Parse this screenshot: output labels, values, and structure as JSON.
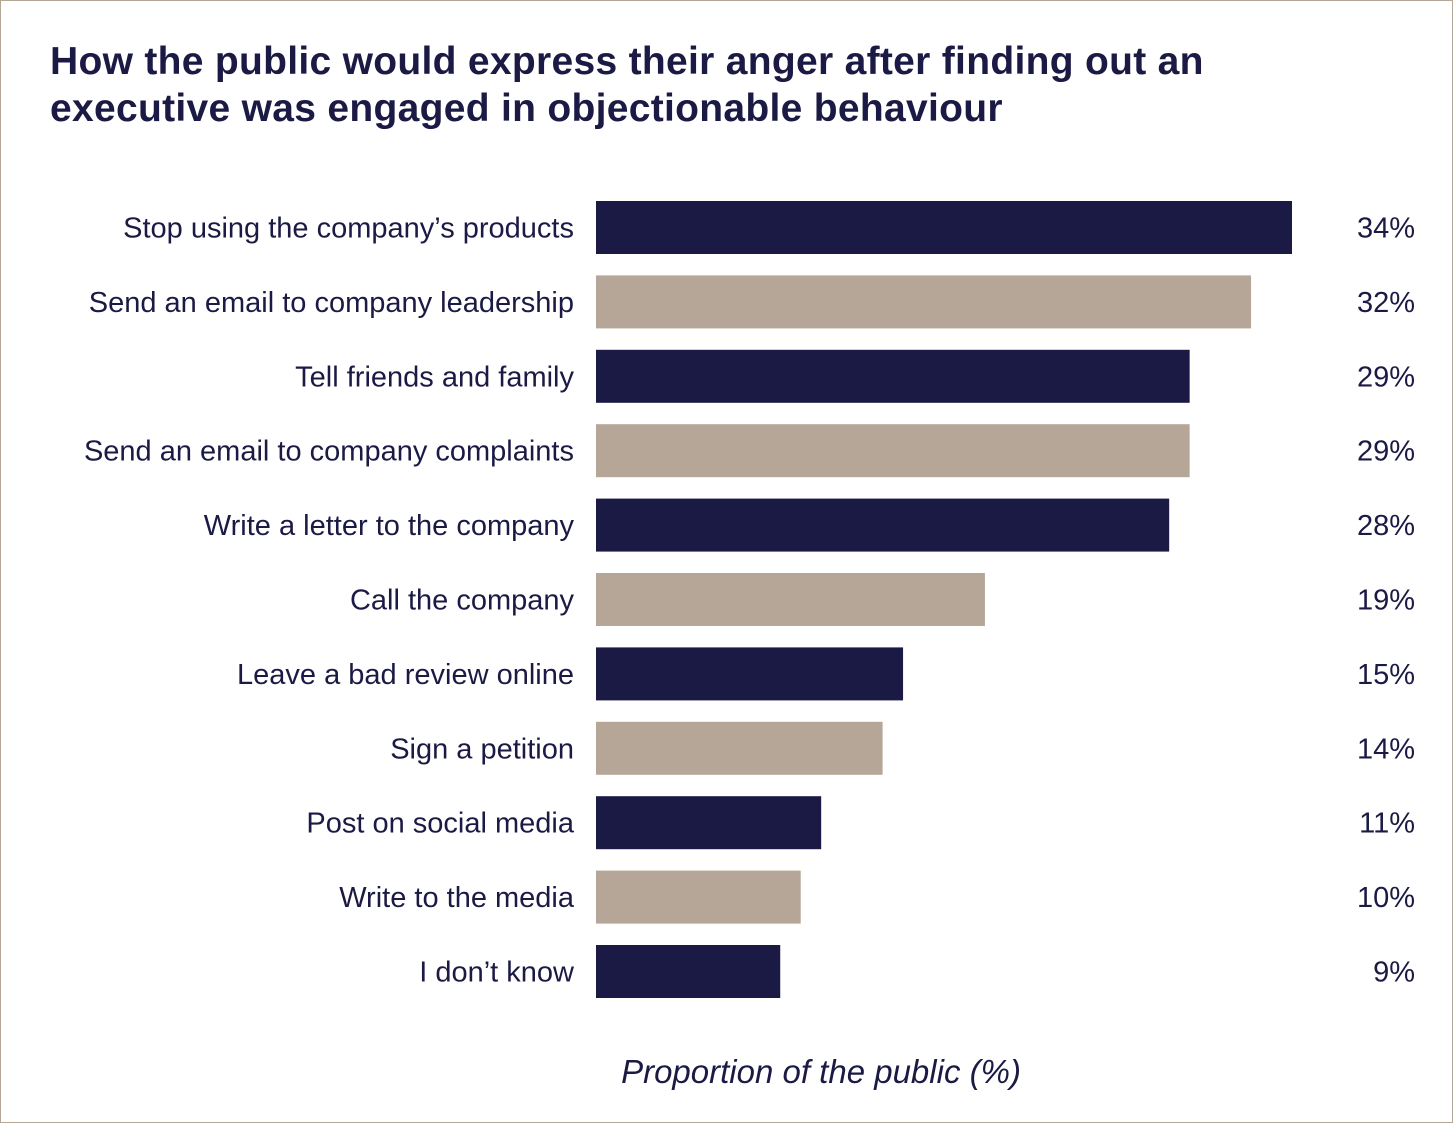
{
  "chart_data": {
    "type": "bar",
    "orientation": "horizontal",
    "title": "How the public would express their anger after finding out an executive was engaged in objectionable behaviour",
    "xlabel": "Proportion of the public (%)",
    "ylabel": "",
    "xlim": [
      0,
      34
    ],
    "grid": false,
    "legend": "none",
    "categories": [
      "Stop using the company’s products",
      "Send an email to company leadership",
      "Tell friends and family",
      "Send an email to company complaints",
      "Write a letter to the company",
      "Call the company",
      "Leave a bad review online",
      "Sign a petition",
      "Post on social media",
      "Write to the media",
      "I don’t know"
    ],
    "values": [
      34,
      32,
      29,
      29,
      28,
      19,
      15,
      14,
      11,
      10,
      9
    ],
    "value_labels": [
      "34%",
      "32%",
      "29%",
      "29%",
      "28%",
      "19%",
      "15%",
      "14%",
      "11%",
      "10%",
      "9%"
    ],
    "colors": [
      "#1b1a44",
      "#b5a698"
    ]
  }
}
